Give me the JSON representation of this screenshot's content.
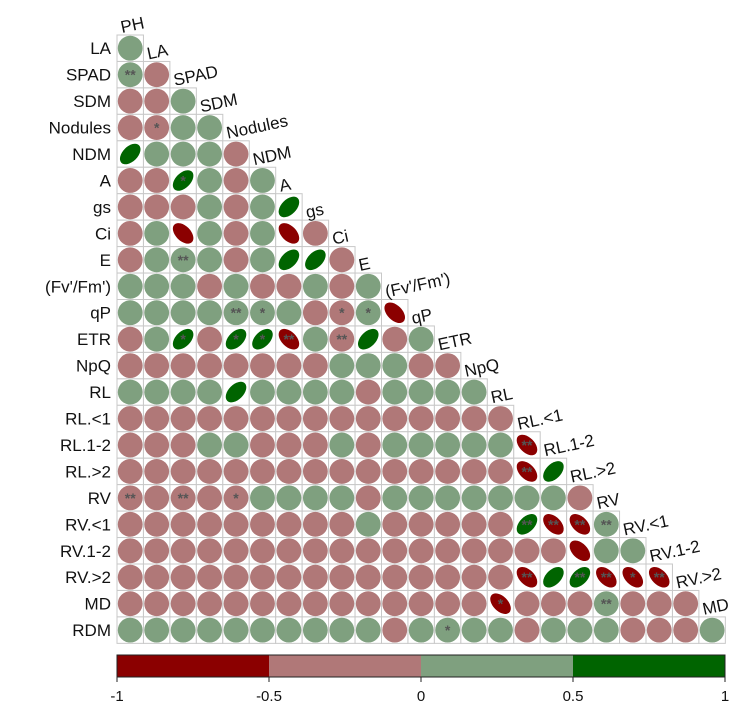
{
  "chart_data": {
    "type": "heatmap",
    "subtype": "lower-triangular correlation matrix (ellipse glyphs)",
    "variables": [
      "PH",
      "LA",
      "SPAD",
      "SDM",
      "Nodules",
      "NDM",
      "A",
      "gs",
      "Ci",
      "E",
      "(Fv'/Fm')",
      "qP",
      "ETR",
      "NpQ",
      "RL",
      "RL.<1",
      "RL.1-2",
      "RL.>2",
      "RV",
      "RV.<1",
      "RV.1-2",
      "RV.>2",
      "MD",
      "RDM"
    ],
    "row_labels": [
      "LA",
      "SPAD",
      "SDM",
      "Nodules",
      "NDM",
      "A",
      "gs",
      "Ci",
      "E",
      "(Fv'/Fm')",
      "qP",
      "ETR",
      "NpQ",
      "RL",
      "RL.<1",
      "RL.1-2",
      "RL.>2",
      "RV",
      "RV.<1",
      "RV.1-2",
      "RV.>2",
      "MD",
      "RDM"
    ],
    "diagonal_labels": [
      "PH",
      "LA",
      "SPAD",
      "SDM",
      "Nodules",
      "NDM",
      "A",
      "gs",
      "Ci",
      "E",
      "(Fv'/Fm')",
      "qP",
      "ETR",
      "NpQ",
      "RL",
      "RL.<1",
      "RL.1-2",
      "RL.>2",
      "RV",
      "RV.<1",
      "RV.1-2",
      "RV.>2",
      "MD"
    ],
    "matrix": [
      [
        0.3
      ],
      [
        0.35,
        -0.3
      ],
      [
        -0.25,
        -0.3,
        0.3
      ],
      [
        -0.3,
        -0.35,
        0.3,
        0.3
      ],
      [
        0.85,
        0.3,
        0.3,
        0.3,
        -0.3
      ],
      [
        -0.3,
        -0.3,
        0.85,
        0.3,
        -0.3,
        0.3
      ],
      [
        -0.3,
        -0.3,
        -0.3,
        0.3,
        -0.3,
        0.3,
        0.85
      ],
      [
        -0.3,
        0.3,
        -0.85,
        0.3,
        -0.3,
        0.3,
        -0.85,
        -0.3
      ],
      [
        -0.3,
        0.3,
        0.35,
        0.3,
        -0.3,
        0.3,
        0.85,
        0.85,
        -0.35
      ],
      [
        0.3,
        0.3,
        0.3,
        -0.3,
        0.3,
        -0.3,
        -0.3,
        0.3,
        -0.3,
        0.3
      ],
      [
        0.3,
        0.3,
        0.3,
        0.3,
        0.35,
        0.35,
        0.3,
        -0.3,
        -0.35,
        0.3,
        -0.85
      ],
      [
        -0.3,
        0.3,
        0.85,
        -0.3,
        0.85,
        0.85,
        -0.85,
        0.3,
        -0.3,
        0.85,
        -0.3,
        0.3
      ],
      [
        -0.3,
        -0.3,
        -0.3,
        -0.3,
        -0.3,
        -0.3,
        -0.3,
        -0.3,
        0.3,
        0.3,
        0.3,
        -0.3,
        -0.3
      ],
      [
        0.3,
        0.3,
        0.3,
        0.3,
        0.85,
        0.3,
        0.3,
        0.3,
        0.3,
        -0.3,
        0.3,
        0.3,
        0.3,
        0.3
      ],
      [
        -0.3,
        -0.3,
        -0.3,
        -0.3,
        -0.3,
        -0.3,
        -0.3,
        -0.3,
        -0.3,
        -0.3,
        -0.3,
        -0.3,
        -0.3,
        -0.3,
        -0.3
      ],
      [
        -0.3,
        -0.3,
        -0.3,
        0.3,
        0.3,
        -0.3,
        -0.3,
        -0.3,
        0.3,
        -0.3,
        0.3,
        0.3,
        0.3,
        0.3,
        0.3,
        -0.85
      ],
      [
        -0.3,
        -0.3,
        -0.3,
        -0.3,
        -0.3,
        -0.3,
        -0.3,
        -0.3,
        -0.3,
        -0.3,
        -0.3,
        -0.3,
        -0.3,
        -0.3,
        -0.3,
        -0.85,
        0.85
      ],
      [
        -0.35,
        -0.3,
        -0.35,
        -0.3,
        -0.35,
        0.3,
        0.3,
        0.3,
        0.3,
        -0.3,
        0.3,
        0.3,
        0.3,
        0.3,
        0.3,
        0.3,
        0.3,
        -0.3
      ],
      [
        -0.3,
        -0.3,
        -0.3,
        -0.3,
        -0.3,
        -0.3,
        -0.3,
        -0.3,
        -0.3,
        0.3,
        -0.3,
        -0.3,
        -0.3,
        -0.3,
        -0.3,
        0.85,
        -0.85,
        -0.85,
        0.3
      ],
      [
        -0.3,
        -0.3,
        -0.3,
        -0.3,
        -0.3,
        -0.3,
        -0.3,
        -0.3,
        -0.3,
        -0.3,
        -0.3,
        -0.3,
        -0.3,
        -0.3,
        -0.3,
        -0.3,
        -0.3,
        -0.85,
        0.3,
        0.3
      ],
      [
        -0.3,
        -0.3,
        -0.3,
        -0.3,
        -0.3,
        -0.3,
        -0.3,
        -0.3,
        -0.3,
        -0.3,
        -0.3,
        -0.3,
        -0.3,
        -0.3,
        -0.3,
        -0.85,
        0.85,
        0.85,
        -0.85,
        -0.85,
        -0.85
      ],
      [
        -0.3,
        -0.3,
        -0.3,
        -0.3,
        -0.3,
        -0.3,
        -0.3,
        -0.3,
        -0.3,
        -0.3,
        -0.3,
        -0.3,
        -0.3,
        -0.3,
        -0.85,
        -0.3,
        -0.3,
        -0.3,
        0.3,
        -0.3,
        -0.3,
        -0.3
      ],
      [
        0.3,
        0.3,
        0.3,
        0.3,
        0.3,
        0.3,
        0.3,
        0.3,
        0.3,
        0.3,
        -0.3,
        0.3,
        0.3,
        0.3,
        0.3,
        -0.3,
        0.3,
        0.3,
        0.3,
        -0.3,
        -0.3,
        -0.3,
        0.3
      ]
    ],
    "significance": [
      {
        "row": "SPAD",
        "col": "PH",
        "mark": "**"
      },
      {
        "row": "Nodules",
        "col": "LA",
        "mark": "*"
      },
      {
        "row": "A",
        "col": "SPAD",
        "mark": "*"
      },
      {
        "row": "E",
        "col": "SPAD",
        "mark": "**"
      },
      {
        "row": "qP",
        "col": "Nodules",
        "mark": "**"
      },
      {
        "row": "qP",
        "col": "NDM",
        "mark": "*"
      },
      {
        "row": "qP",
        "col": "Ci",
        "mark": "*"
      },
      {
        "row": "qP",
        "col": "E",
        "mark": "*"
      },
      {
        "row": "ETR",
        "col": "SPAD",
        "mark": "*"
      },
      {
        "row": "ETR",
        "col": "Nodules",
        "mark": "*"
      },
      {
        "row": "ETR",
        "col": "NDM",
        "mark": "*"
      },
      {
        "row": "ETR",
        "col": "A",
        "mark": "**"
      },
      {
        "row": "ETR",
        "col": "Ci",
        "mark": "**"
      },
      {
        "row": "RL.1-2",
        "col": "RL.<1",
        "mark": "**"
      },
      {
        "row": "RL.>2",
        "col": "RL.<1",
        "mark": "**"
      },
      {
        "row": "RV",
        "col": "PH",
        "mark": "**"
      },
      {
        "row": "RV",
        "col": "SPAD",
        "mark": "**"
      },
      {
        "row": "RV",
        "col": "Nodules",
        "mark": "*"
      },
      {
        "row": "RV.<1",
        "col": "RL.<1",
        "mark": "**"
      },
      {
        "row": "RV.<1",
        "col": "RL.1-2",
        "mark": "**"
      },
      {
        "row": "RV.<1",
        "col": "RL.>2",
        "mark": "**"
      },
      {
        "row": "RV.<1",
        "col": "RV",
        "mark": "**"
      },
      {
        "row": "RV.>2",
        "col": "RL.<1",
        "mark": "**"
      },
      {
        "row": "RV.>2",
        "col": "RL.>2",
        "mark": "**"
      },
      {
        "row": "RV.>2",
        "col": "RV",
        "mark": "**"
      },
      {
        "row": "RV.>2",
        "col": "RV.<1",
        "mark": "*"
      },
      {
        "row": "RV.>2",
        "col": "RV.1-2",
        "mark": "**"
      },
      {
        "row": "MD",
        "col": "RL",
        "mark": "*"
      },
      {
        "row": "MD",
        "col": "RV",
        "mark": "**"
      },
      {
        "row": "RDM",
        "col": "ETR",
        "mark": "*"
      }
    ],
    "color_scale": {
      "range": [
        -1,
        1
      ],
      "breaks": [
        -1,
        -0.5,
        0,
        0.5,
        1
      ],
      "colors": [
        "#8b0000",
        "#b07878",
        "#7fa07f",
        "#006400"
      ],
      "tick_labels": [
        "-1",
        "-0.5",
        "0",
        "0.5",
        "1"
      ]
    },
    "grid_color": "#c8c8c8",
    "legend": "bottom"
  }
}
